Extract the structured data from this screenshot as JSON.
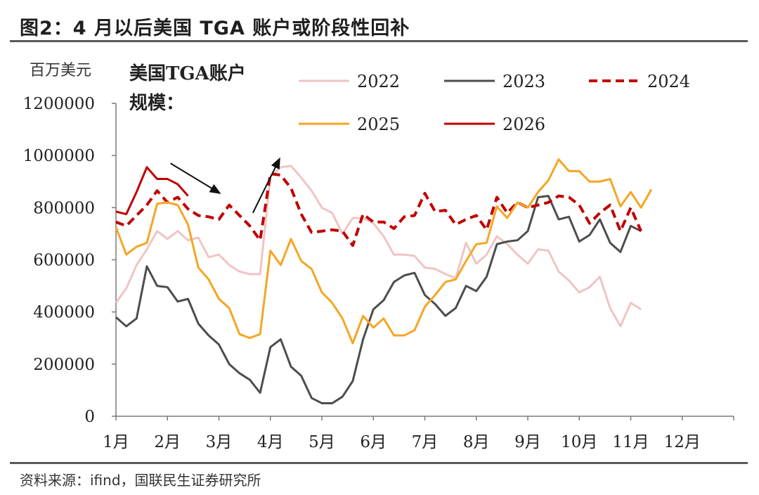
{
  "figure": {
    "title": "图2：4 月以后美国 TGA 账户或阶段性回补",
    "source": "资料来源：ifind，国联民生证券研究所"
  },
  "chart_data": {
    "type": "line",
    "unit_label": "百万美元",
    "annotation": [
      "美国TGA账户",
      "规模："
    ],
    "ylim": [
      0,
      1200000
    ],
    "yticks": [
      0,
      200000,
      400000,
      600000,
      800000,
      1000000,
      1200000
    ],
    "ytick_labels": [
      "0",
      "200000",
      "400000",
      "600000",
      "800000",
      "1000000",
      "1200000"
    ],
    "xlim": [
      0,
      60
    ],
    "xticks": [
      0,
      5,
      10,
      15,
      20,
      25,
      30,
      35,
      40,
      45,
      50,
      55
    ],
    "xtick_labels": [
      "1月",
      "2月",
      "3月",
      "4月",
      "5月",
      "6月",
      "7月",
      "8月",
      "9月",
      "10月",
      "11月",
      "12月"
    ],
    "legend_position": "top-right",
    "series": [
      {
        "name": "2022",
        "color": "#f0c4c4",
        "dash": false,
        "values": [
          435000,
          490000,
          580000,
          640000,
          710000,
          680000,
          710000,
          675000,
          685000,
          610000,
          620000,
          580000,
          555000,
          545000,
          545000,
          920000,
          955000,
          960000,
          915000,
          865000,
          800000,
          780000,
          700000,
          760000,
          760000,
          740000,
          690000,
          620000,
          620000,
          615000,
          570000,
          565000,
          545000,
          530000,
          665000,
          585000,
          620000,
          690000,
          660000,
          620000,
          585000,
          640000,
          635000,
          555000,
          520000,
          475000,
          495000,
          535000,
          415000,
          345000,
          435000,
          410000
        ]
      },
      {
        "name": "2023",
        "color": "#4d4d4d",
        "dash": false,
        "values": [
          380000,
          345000,
          375000,
          575000,
          500000,
          495000,
          440000,
          450000,
          355000,
          310000,
          275000,
          200000,
          165000,
          140000,
          90000,
          265000,
          295000,
          190000,
          155000,
          70000,
          50000,
          50000,
          75000,
          135000,
          295000,
          410000,
          445000,
          515000,
          540000,
          550000,
          465000,
          430000,
          385000,
          415000,
          500000,
          480000,
          535000,
          660000,
          670000,
          675000,
          710000,
          840000,
          845000,
          755000,
          765000,
          670000,
          695000,
          755000,
          665000,
          630000,
          730000,
          710000
        ]
      },
      {
        "name": "2024",
        "color": "#c00000",
        "dash": true,
        "values": [
          745000,
          730000,
          770000,
          810000,
          865000,
          820000,
          840000,
          795000,
          770000,
          765000,
          755000,
          810000,
          770000,
          730000,
          675000,
          930000,
          925000,
          875000,
          775000,
          705000,
          710000,
          715000,
          710000,
          655000,
          775000,
          745000,
          745000,
          720000,
          765000,
          770000,
          855000,
          785000,
          790000,
          735000,
          755000,
          770000,
          715000,
          840000,
          780000,
          820000,
          800000,
          810000,
          820000,
          845000,
          840000,
          810000,
          740000,
          780000,
          810000,
          710000,
          800000,
          710000
        ]
      },
      {
        "name": "2025",
        "color": "#f5a623",
        "dash": false,
        "values": [
          725000,
          620000,
          650000,
          665000,
          815000,
          820000,
          810000,
          735000,
          570000,
          525000,
          450000,
          415000,
          315000,
          300000,
          315000,
          635000,
          580000,
          680000,
          595000,
          565000,
          475000,
          435000,
          375000,
          280000,
          385000,
          340000,
          375000,
          310000,
          310000,
          330000,
          420000,
          465000,
          515000,
          525000,
          595000,
          660000,
          665000,
          805000,
          760000,
          820000,
          800000,
          860000,
          905000,
          985000,
          940000,
          940000,
          900000,
          900000,
          910000,
          805000,
          860000,
          800000,
          870000
        ]
      },
      {
        "name": "2026",
        "color": "#c00000",
        "dash": false,
        "values": [
          785000,
          775000,
          860000,
          955000,
          910000,
          910000,
          890000,
          845000
        ]
      }
    ],
    "arrows": [
      {
        "from": [
          5.3,
          970000
        ],
        "to": [
          9.9,
          860000
        ]
      },
      {
        "from": [
          13.3,
          780000
        ],
        "to": [
          15.8,
          980000
        ]
      }
    ]
  }
}
